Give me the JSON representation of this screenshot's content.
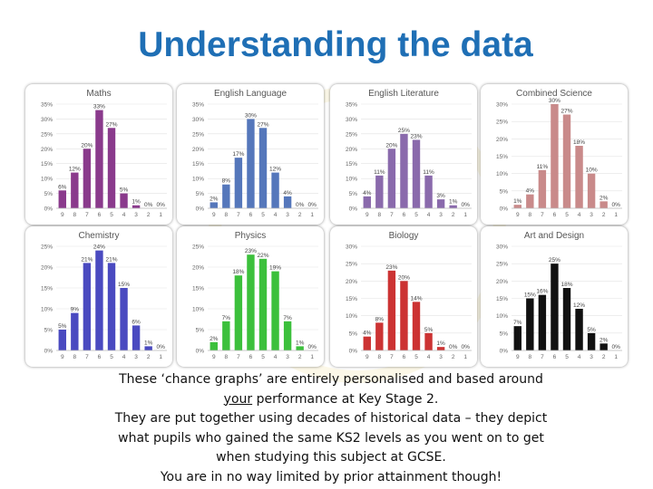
{
  "title": "Understanding the data",
  "caption": {
    "line1": "These ‘chance graphs’ are entirely personalised and based around",
    "line2_u": "your",
    "line2_rest": " performance at Key Stage 2.",
    "line3": "They are put together using decades of historical data – they depict",
    "line4": "what pupils who gained the same KS2 levels as you went on to get",
    "line5": "when studying this subject at GCSE.",
    "line6": "You are in no way limited by prior attainment though!"
  },
  "chart_data": [
    {
      "type": "bar",
      "title": "Maths",
      "categories": [
        "9",
        "8",
        "7",
        "6",
        "5",
        "4",
        "3",
        "2",
        "1"
      ],
      "values": [
        6,
        12,
        20,
        33,
        27,
        5,
        1,
        0,
        0
      ],
      "data_labels": [
        "6%",
        "12%",
        "20%",
        "33%",
        "27%",
        "5%",
        "1%",
        "0%",
        "0%"
      ],
      "yticks": [
        "0%",
        "5%",
        "10%",
        "15%",
        "20%",
        "25%",
        "30%",
        "35%"
      ],
      "ylim": [
        0,
        35
      ],
      "color": "#8a3a8c"
    },
    {
      "type": "bar",
      "title": "English Language",
      "categories": [
        "9",
        "8",
        "7",
        "6",
        "5",
        "4",
        "3",
        "2",
        "1"
      ],
      "values": [
        2,
        8,
        17,
        30,
        27,
        12,
        4,
        0,
        0
      ],
      "data_labels": [
        "2%",
        "8%",
        "17%",
        "30%",
        "27%",
        "12%",
        "4%",
        "0%",
        "0%"
      ],
      "yticks": [
        "0%",
        "5%",
        "10%",
        "15%",
        "20%",
        "25%",
        "30%",
        "35%"
      ],
      "ylim": [
        0,
        35
      ],
      "color": "#5577bb"
    },
    {
      "type": "bar",
      "title": "English Literature",
      "categories": [
        "9",
        "8",
        "7",
        "6",
        "5",
        "4",
        "3",
        "2",
        "1"
      ],
      "values": [
        4,
        11,
        20,
        25,
        23,
        11,
        3,
        1,
        0
      ],
      "data_labels": [
        "4%",
        "11%",
        "20%",
        "25%",
        "23%",
        "11%",
        "3%",
        "1%",
        "0%"
      ],
      "yticks": [
        "0%",
        "5%",
        "10%",
        "15%",
        "20%",
        "25%",
        "30%",
        "35%"
      ],
      "ylim": [
        0,
        35
      ],
      "color": "#8a6aac"
    },
    {
      "type": "bar",
      "title": "Combined Science",
      "categories": [
        "9",
        "8",
        "7",
        "6",
        "5",
        "4",
        "3",
        "2",
        "1"
      ],
      "values": [
        1,
        4,
        11,
        30,
        27,
        18,
        10,
        2,
        0
      ],
      "data_labels": [
        "1%",
        "4%",
        "11%",
        "30%",
        "27%",
        "18%",
        "10%",
        "2%",
        "0%"
      ],
      "yticks": [
        "0%",
        "5%",
        "10%",
        "15%",
        "20%",
        "25%",
        "30%"
      ],
      "ylim": [
        0,
        30
      ],
      "color": "#c98a8a"
    },
    {
      "type": "bar",
      "title": "Chemistry",
      "categories": [
        "9",
        "8",
        "7",
        "6",
        "5",
        "4",
        "3",
        "2",
        "1"
      ],
      "values": [
        5,
        9,
        21,
        24,
        21,
        15,
        6,
        1,
        0
      ],
      "data_labels": [
        "5%",
        "9%",
        "21%",
        "24%",
        "21%",
        "15%",
        "6%",
        "1%",
        "0%"
      ],
      "yticks": [
        "0%",
        "5%",
        "10%",
        "15%",
        "20%",
        "25%"
      ],
      "ylim": [
        0,
        25
      ],
      "color": "#4a4ac0"
    },
    {
      "type": "bar",
      "title": "Physics",
      "categories": [
        "9",
        "8",
        "7",
        "6",
        "5",
        "4",
        "3",
        "2",
        "1"
      ],
      "values": [
        2,
        7,
        18,
        23,
        22,
        19,
        7,
        1,
        0
      ],
      "data_labels": [
        "2%",
        "7%",
        "18%",
        "23%",
        "22%",
        "19%",
        "7%",
        "1%",
        "0%"
      ],
      "yticks": [
        "0%",
        "5%",
        "10%",
        "15%",
        "20%",
        "25%"
      ],
      "ylim": [
        0,
        25
      ],
      "color": "#3cc03c"
    },
    {
      "type": "bar",
      "title": "Biology",
      "categories": [
        "9",
        "8",
        "7",
        "6",
        "5",
        "4",
        "3",
        "2",
        "1"
      ],
      "values": [
        4,
        8,
        23,
        20,
        14,
        5,
        1,
        0,
        0
      ],
      "data_labels": [
        "4%",
        "8%",
        "23%",
        "20%",
        "14%",
        "5%",
        "1%",
        "0%",
        "0%"
      ],
      "yticks": [
        "0%",
        "5%",
        "10%",
        "15%",
        "20%",
        "25%",
        "30%"
      ],
      "ylim": [
        0,
        30
      ],
      "color": "#cc3333"
    },
    {
      "type": "bar",
      "title": "Art and Design",
      "categories": [
        "9",
        "8",
        "7",
        "6",
        "5",
        "4",
        "3",
        "2",
        "1"
      ],
      "values": [
        7,
        15,
        16,
        25,
        18,
        12,
        5,
        2,
        0
      ],
      "data_labels": [
        "7%",
        "15%",
        "16%",
        "25%",
        "18%",
        "12%",
        "5%",
        "2%",
        "0%"
      ],
      "yticks": [
        "0%",
        "5%",
        "10%",
        "15%",
        "20%",
        "25%",
        "30%"
      ],
      "ylim": [
        0,
        30
      ],
      "color": "#111111"
    }
  ]
}
